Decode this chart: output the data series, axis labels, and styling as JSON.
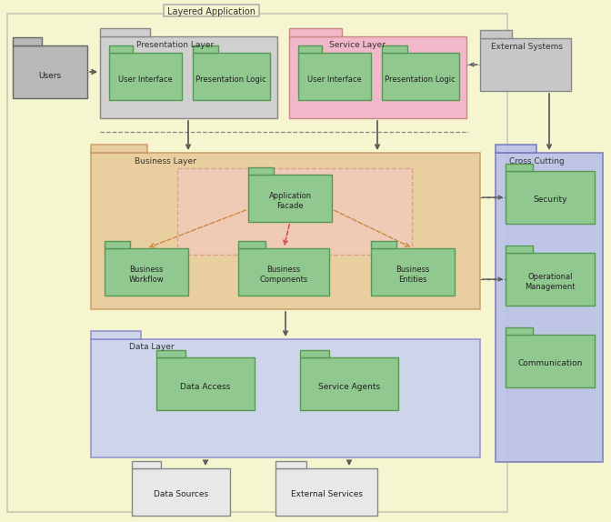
{
  "colors": {
    "bg_color": "#f5f5d0",
    "green_box": "#90c890",
    "gray_box": "#b8b8b8",
    "presentation_bg": "#d0d0d0",
    "service_bg": "#f0b8c8",
    "business_bg": "#e8c898",
    "data_bg": "#c8d0f0",
    "crosscutting_bg": "#b8c0e8",
    "external_bg": "#c8c8c8",
    "arrow_color": "#555555",
    "dashed_color": "#cc8844"
  },
  "labels": {
    "title": "Layered Application",
    "users": "Users",
    "presentation_layer": "Presentation Layer",
    "service_layer": "Service Layer",
    "external_systems": "External Systems",
    "user_interface": "User Interface",
    "presentation_logic1": "Presentation Logic",
    "user_interface2": "User Interface",
    "presentation_logic2": "Presentation Logic",
    "business_layer": "Business Layer",
    "application_facade": "Application\nFacade",
    "business_workflow": "Business\nWorkflow",
    "business_components": "Business\nComponents",
    "business_entities": "Business\nEntities",
    "data_layer": "Data Layer",
    "data_access": "Data Access",
    "service_agents": "Service Agents",
    "data_sources": "Data Sources",
    "external_services": "External Services",
    "cross_cutting": "Cross Cutting",
    "security": "Security",
    "operational_mgmt": "Operational\nManagement",
    "communication": "Communication"
  }
}
